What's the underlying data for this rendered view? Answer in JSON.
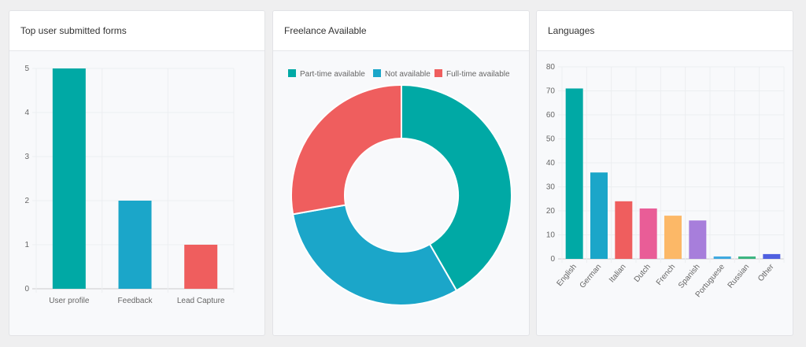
{
  "chart_data": [
    {
      "type": "bar",
      "title": "Top user submitted forms",
      "categories": [
        "User profile",
        "Feedback",
        "Lead Capture"
      ],
      "values": [
        5,
        2,
        1
      ],
      "colors": [
        "#00a9a5",
        "#1ba6c9",
        "#ef5e5e"
      ],
      "ylim": [
        0,
        5
      ],
      "yticks": [
        0,
        1,
        2,
        3,
        4,
        5
      ],
      "grid": true
    },
    {
      "type": "pie",
      "title": "Freelance Available",
      "donut": true,
      "categories": [
        "Part-time available",
        "Not available",
        "Full-time available"
      ],
      "values": [
        15,
        11,
        10
      ],
      "colors": [
        "#00a9a5",
        "#1ba6c9",
        "#ef5e5e"
      ],
      "legend": "top"
    },
    {
      "type": "bar",
      "title": "Languages",
      "categories": [
        "English",
        "German",
        "Italian",
        "Dutch",
        "French",
        "Spanish",
        "Portuguese",
        "Russian",
        "Other"
      ],
      "values": [
        71,
        36,
        24,
        21,
        18,
        16,
        1,
        1,
        2
      ],
      "colors": [
        "#00a9a5",
        "#1ba6c9",
        "#ef5e5e",
        "#e95d97",
        "#fcb867",
        "#a77edb",
        "#3fa9e0",
        "#3db581",
        "#4f60e0"
      ],
      "ylim": [
        0,
        80
      ],
      "yticks": [
        0,
        10,
        20,
        30,
        40,
        50,
        60,
        70,
        80
      ],
      "grid": true
    }
  ]
}
